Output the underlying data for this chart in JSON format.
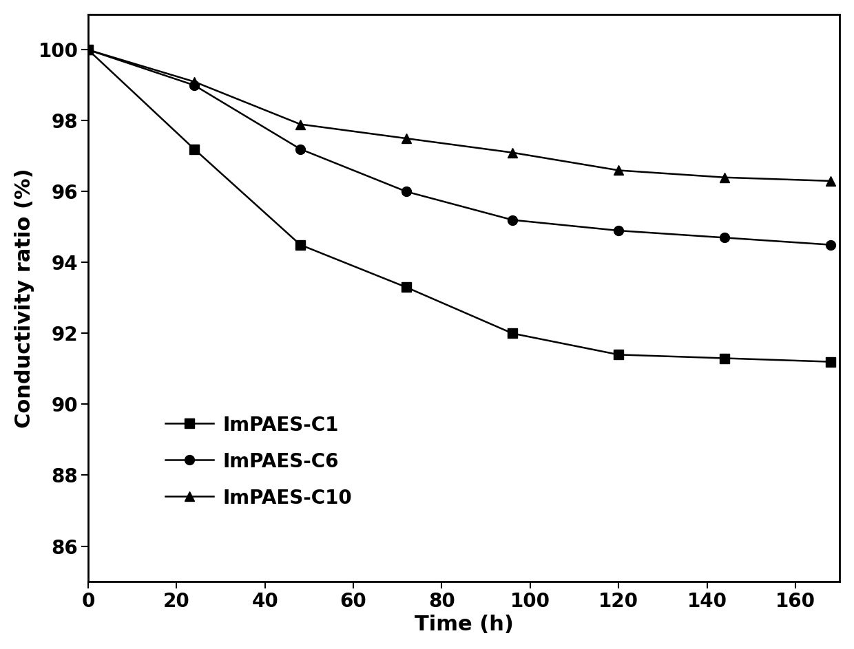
{
  "x": [
    0,
    24,
    48,
    72,
    96,
    120,
    144,
    168
  ],
  "ImPAES_C1": [
    100,
    97.2,
    94.5,
    93.3,
    92.0,
    91.4,
    91.3,
    91.2
  ],
  "ImPAES_C6": [
    100,
    99.0,
    97.2,
    96.0,
    95.2,
    94.9,
    94.7,
    94.5
  ],
  "ImPAES_C10": [
    100,
    99.1,
    97.9,
    97.5,
    97.1,
    96.6,
    96.4,
    96.3
  ],
  "xlabel": "Time (h)",
  "ylabel": "Conductivity ratio (%)",
  "xlim": [
    0,
    170
  ],
  "ylim": [
    85,
    101
  ],
  "yticks": [
    86,
    88,
    90,
    92,
    94,
    96,
    98,
    100
  ],
  "xticks": [
    0,
    20,
    40,
    60,
    80,
    100,
    120,
    140,
    160
  ],
  "legend_labels": [
    "ImPAES-C1",
    "ImPAES-C6",
    "ImPAES-C10"
  ],
  "line_color": "#000000",
  "marker_C1": "s",
  "marker_C6": "o",
  "marker_C10": "^",
  "marker_size": 10,
  "line_width": 1.8,
  "font_size_label": 22,
  "font_size_tick": 20,
  "font_size_legend": 20
}
